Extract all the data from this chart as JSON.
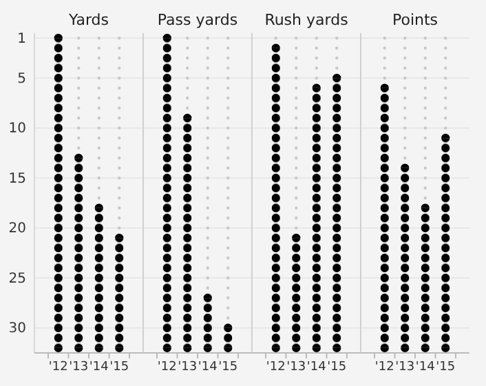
{
  "chart_data": [
    {
      "type": "bar",
      "title": "Yards",
      "categories": [
        "'12",
        "'13",
        "'14",
        "'15"
      ],
      "base": [
        32,
        32,
        32,
        32
      ],
      "values": [
        -31,
        -19,
        -14,
        -11
      ],
      "color": "#000000",
      "ylim": [
        32.5,
        0.5
      ],
      "yticks": [
        1,
        5,
        10,
        15,
        20,
        25,
        30
      ],
      "grid": true
    },
    {
      "type": "bar",
      "title": "Pass yards",
      "categories": [
        "'12",
        "'13",
        "'14",
        "'15"
      ],
      "base": [
        32,
        32,
        32,
        32
      ],
      "values": [
        -31,
        -23,
        -5,
        -2
      ],
      "color": "#000000",
      "ylim": [
        32.5,
        0.5
      ],
      "yticks": [
        1,
        5,
        10,
        15,
        20,
        25,
        30
      ],
      "grid": true,
      "tick_labels": "x"
    },
    {
      "type": "bar",
      "title": "Rush yards",
      "categories": [
        "'12",
        "'13",
        "'14",
        "'15"
      ],
      "base": [
        32,
        32,
        32,
        32
      ],
      "values": [
        -30,
        -11,
        -26,
        -27
      ],
      "color": "#000000",
      "ylim": [
        32.5,
        0.5
      ],
      "yticks": [
        1,
        5,
        10,
        15,
        20,
        25,
        30
      ],
      "grid": true,
      "tick_labels": "x"
    },
    {
      "type": "bar",
      "title": "Points",
      "categories": [
        "'12",
        "'13",
        "'14",
        "'15"
      ],
      "base": [
        32,
        32,
        32,
        32
      ],
      "values": [
        -26,
        -18,
        -14,
        -21
      ],
      "color": "#000000",
      "ylim": [
        32.5,
        0.5
      ],
      "yticks": [
        1,
        5,
        10,
        15,
        20,
        25,
        30
      ],
      "grid": true,
      "tick_labels": "x"
    }
  ]
}
